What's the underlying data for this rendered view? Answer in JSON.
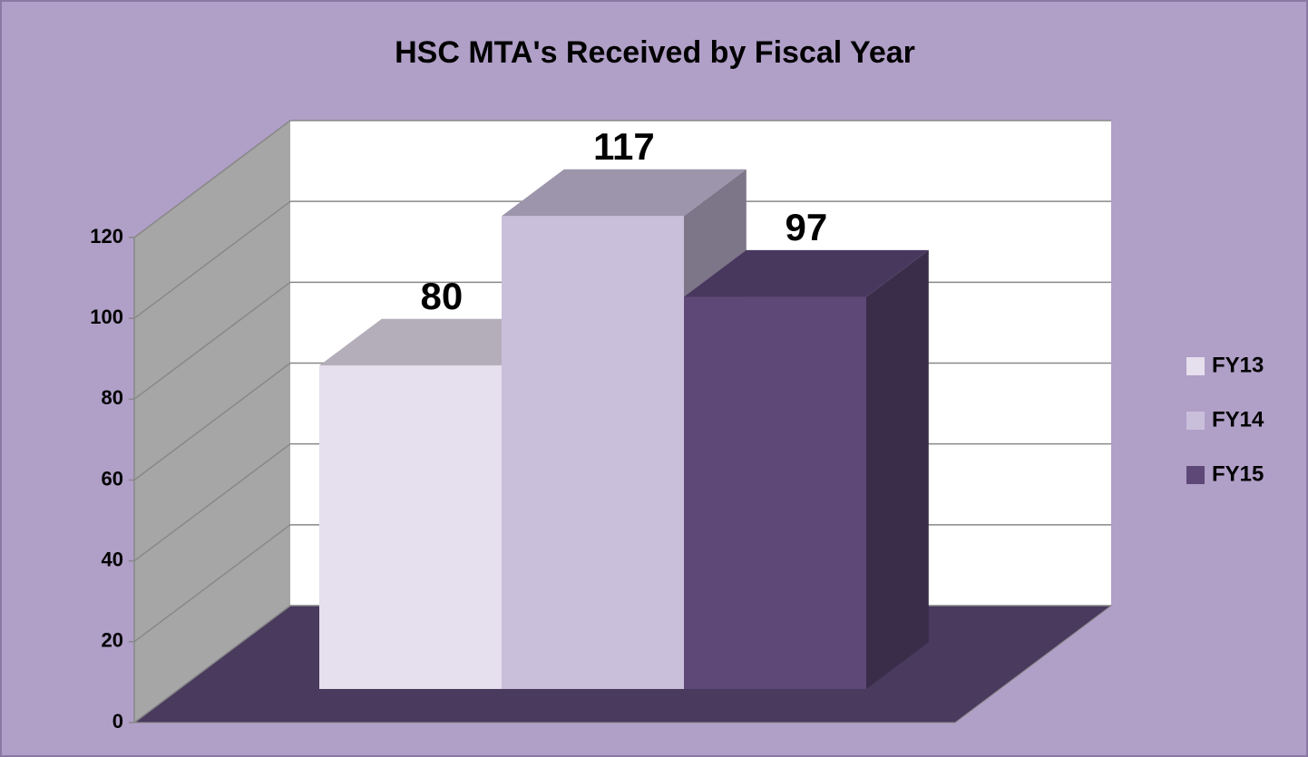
{
  "chart_data": {
    "type": "bar3d",
    "title": "HSC MTA's Received by Fiscal Year",
    "categories": [
      null
    ],
    "series": [
      {
        "name": "FY13",
        "color": "#e6dfed",
        "values": [
          80
        ]
      },
      {
        "name": "FY14",
        "color": "#c9bfdb",
        "values": [
          117
        ]
      },
      {
        "name": "FY15",
        "color": "#5e4878",
        "values": [
          97
        ]
      }
    ],
    "ylim": [
      0,
      120
    ],
    "yticks": [
      0,
      20,
      40,
      60,
      80,
      100,
      120
    ],
    "grid": true,
    "legend": "right"
  }
}
